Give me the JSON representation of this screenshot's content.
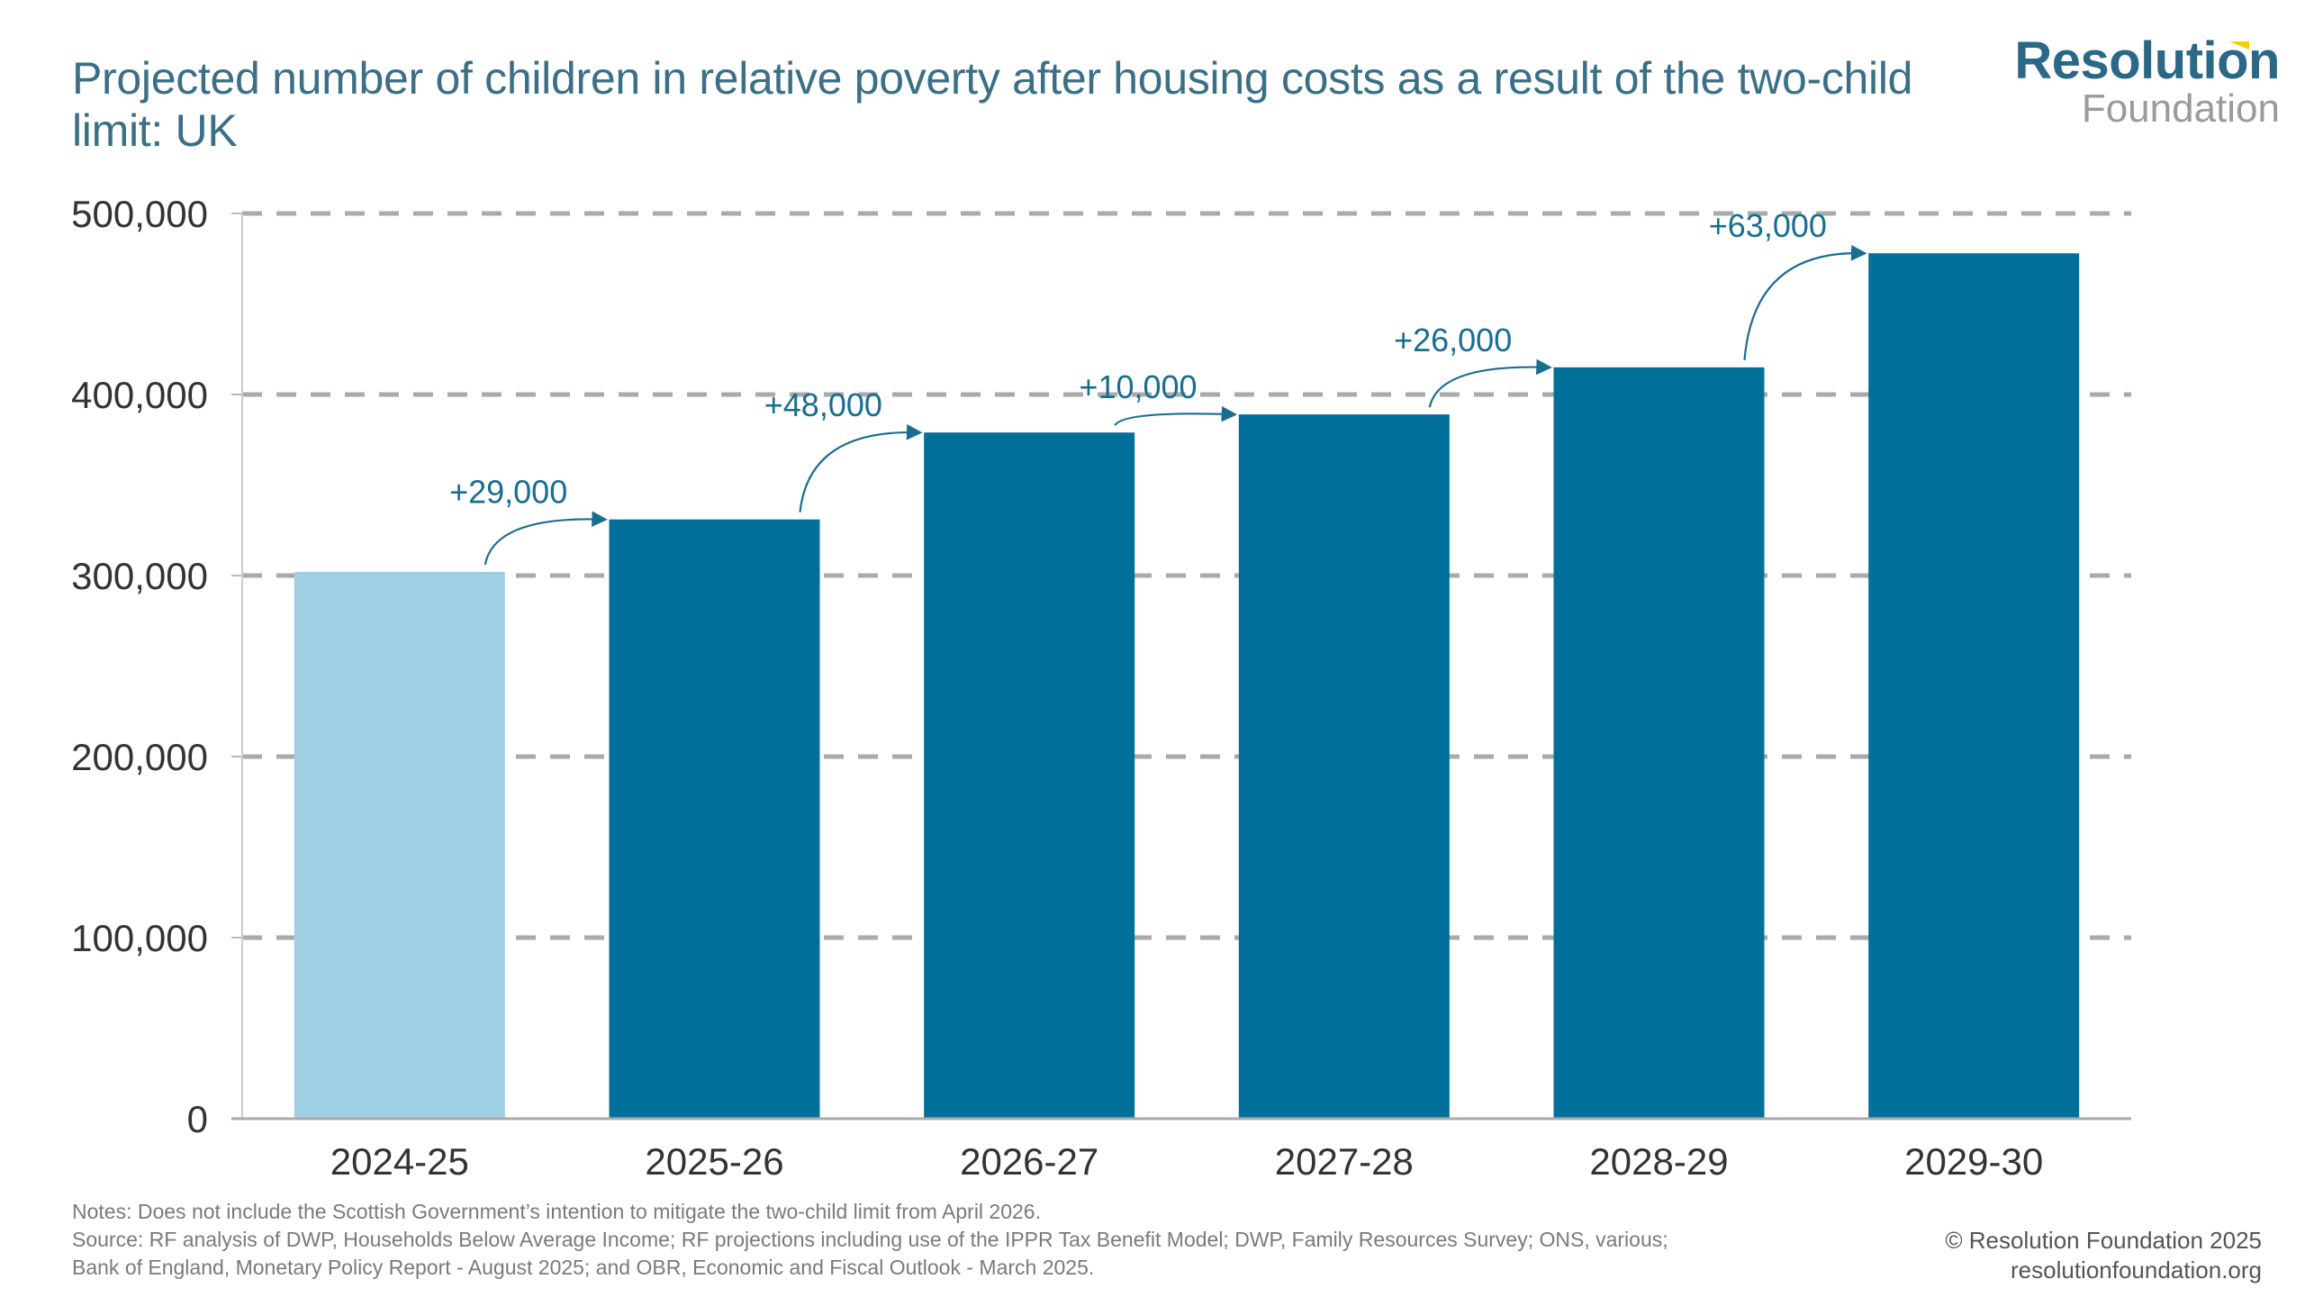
{
  "title": "Projected number of children in relative poverty after housing costs as a result of the two-child limit: UK",
  "logo": {
    "line1": "Resolution",
    "line2": "Foundation"
  },
  "colors": {
    "title": "#3b6f86",
    "bar_baseline": "#9ecfe5",
    "bar_projected": "#00709a",
    "annotation": "#1a6d8f",
    "grid": "#aaaaaa",
    "accent": "#f2d000"
  },
  "chart_data": {
    "type": "bar",
    "title": "Projected number of children in relative poverty after housing costs as a result of the two-child limit: UK",
    "xlabel": "",
    "ylabel": "",
    "categories": [
      "2024-25",
      "2025-26",
      "2026-27",
      "2027-28",
      "2028-29",
      "2029-30"
    ],
    "values": [
      302000,
      331000,
      379000,
      389000,
      415000,
      478000
    ],
    "bar_types": [
      "baseline",
      "projected",
      "projected",
      "projected",
      "projected",
      "projected"
    ],
    "ylim": [
      0,
      500000
    ],
    "yticks": [
      0,
      100000,
      200000,
      300000,
      400000,
      500000
    ],
    "ytick_labels": [
      "0",
      "100,000",
      "200,000",
      "300,000",
      "400,000",
      "500,000"
    ],
    "grid": true,
    "grid_style": "dashed",
    "legend": "none",
    "annotations": [
      {
        "from": "2024-25",
        "to": "2025-26",
        "label": "+29,000"
      },
      {
        "from": "2025-26",
        "to": "2026-27",
        "label": "+48,000"
      },
      {
        "from": "2026-27",
        "to": "2027-28",
        "label": "+10,000"
      },
      {
        "from": "2027-28",
        "to": "2028-29",
        "label": "+26,000"
      },
      {
        "from": "2028-29",
        "to": "2029-30",
        "label": "+63,000"
      }
    ]
  },
  "footer": {
    "notes": "Notes: Does not include the Scottish Government’s intention to mitigate the two-child limit from April 2026.",
    "source_line1": "Source: RF analysis of DWP, Households Below Average Income; RF projections including use of the IPPR Tax Benefit Model; DWP, Family Resources Survey; ONS, various;",
    "source_line2": "Bank of England, Monetary Policy Report - August 2025; and OBR, Economic and Fiscal Outlook - March 2025.",
    "copyright": "© Resolution Foundation 2025",
    "website": "resolutionfoundation.org"
  }
}
